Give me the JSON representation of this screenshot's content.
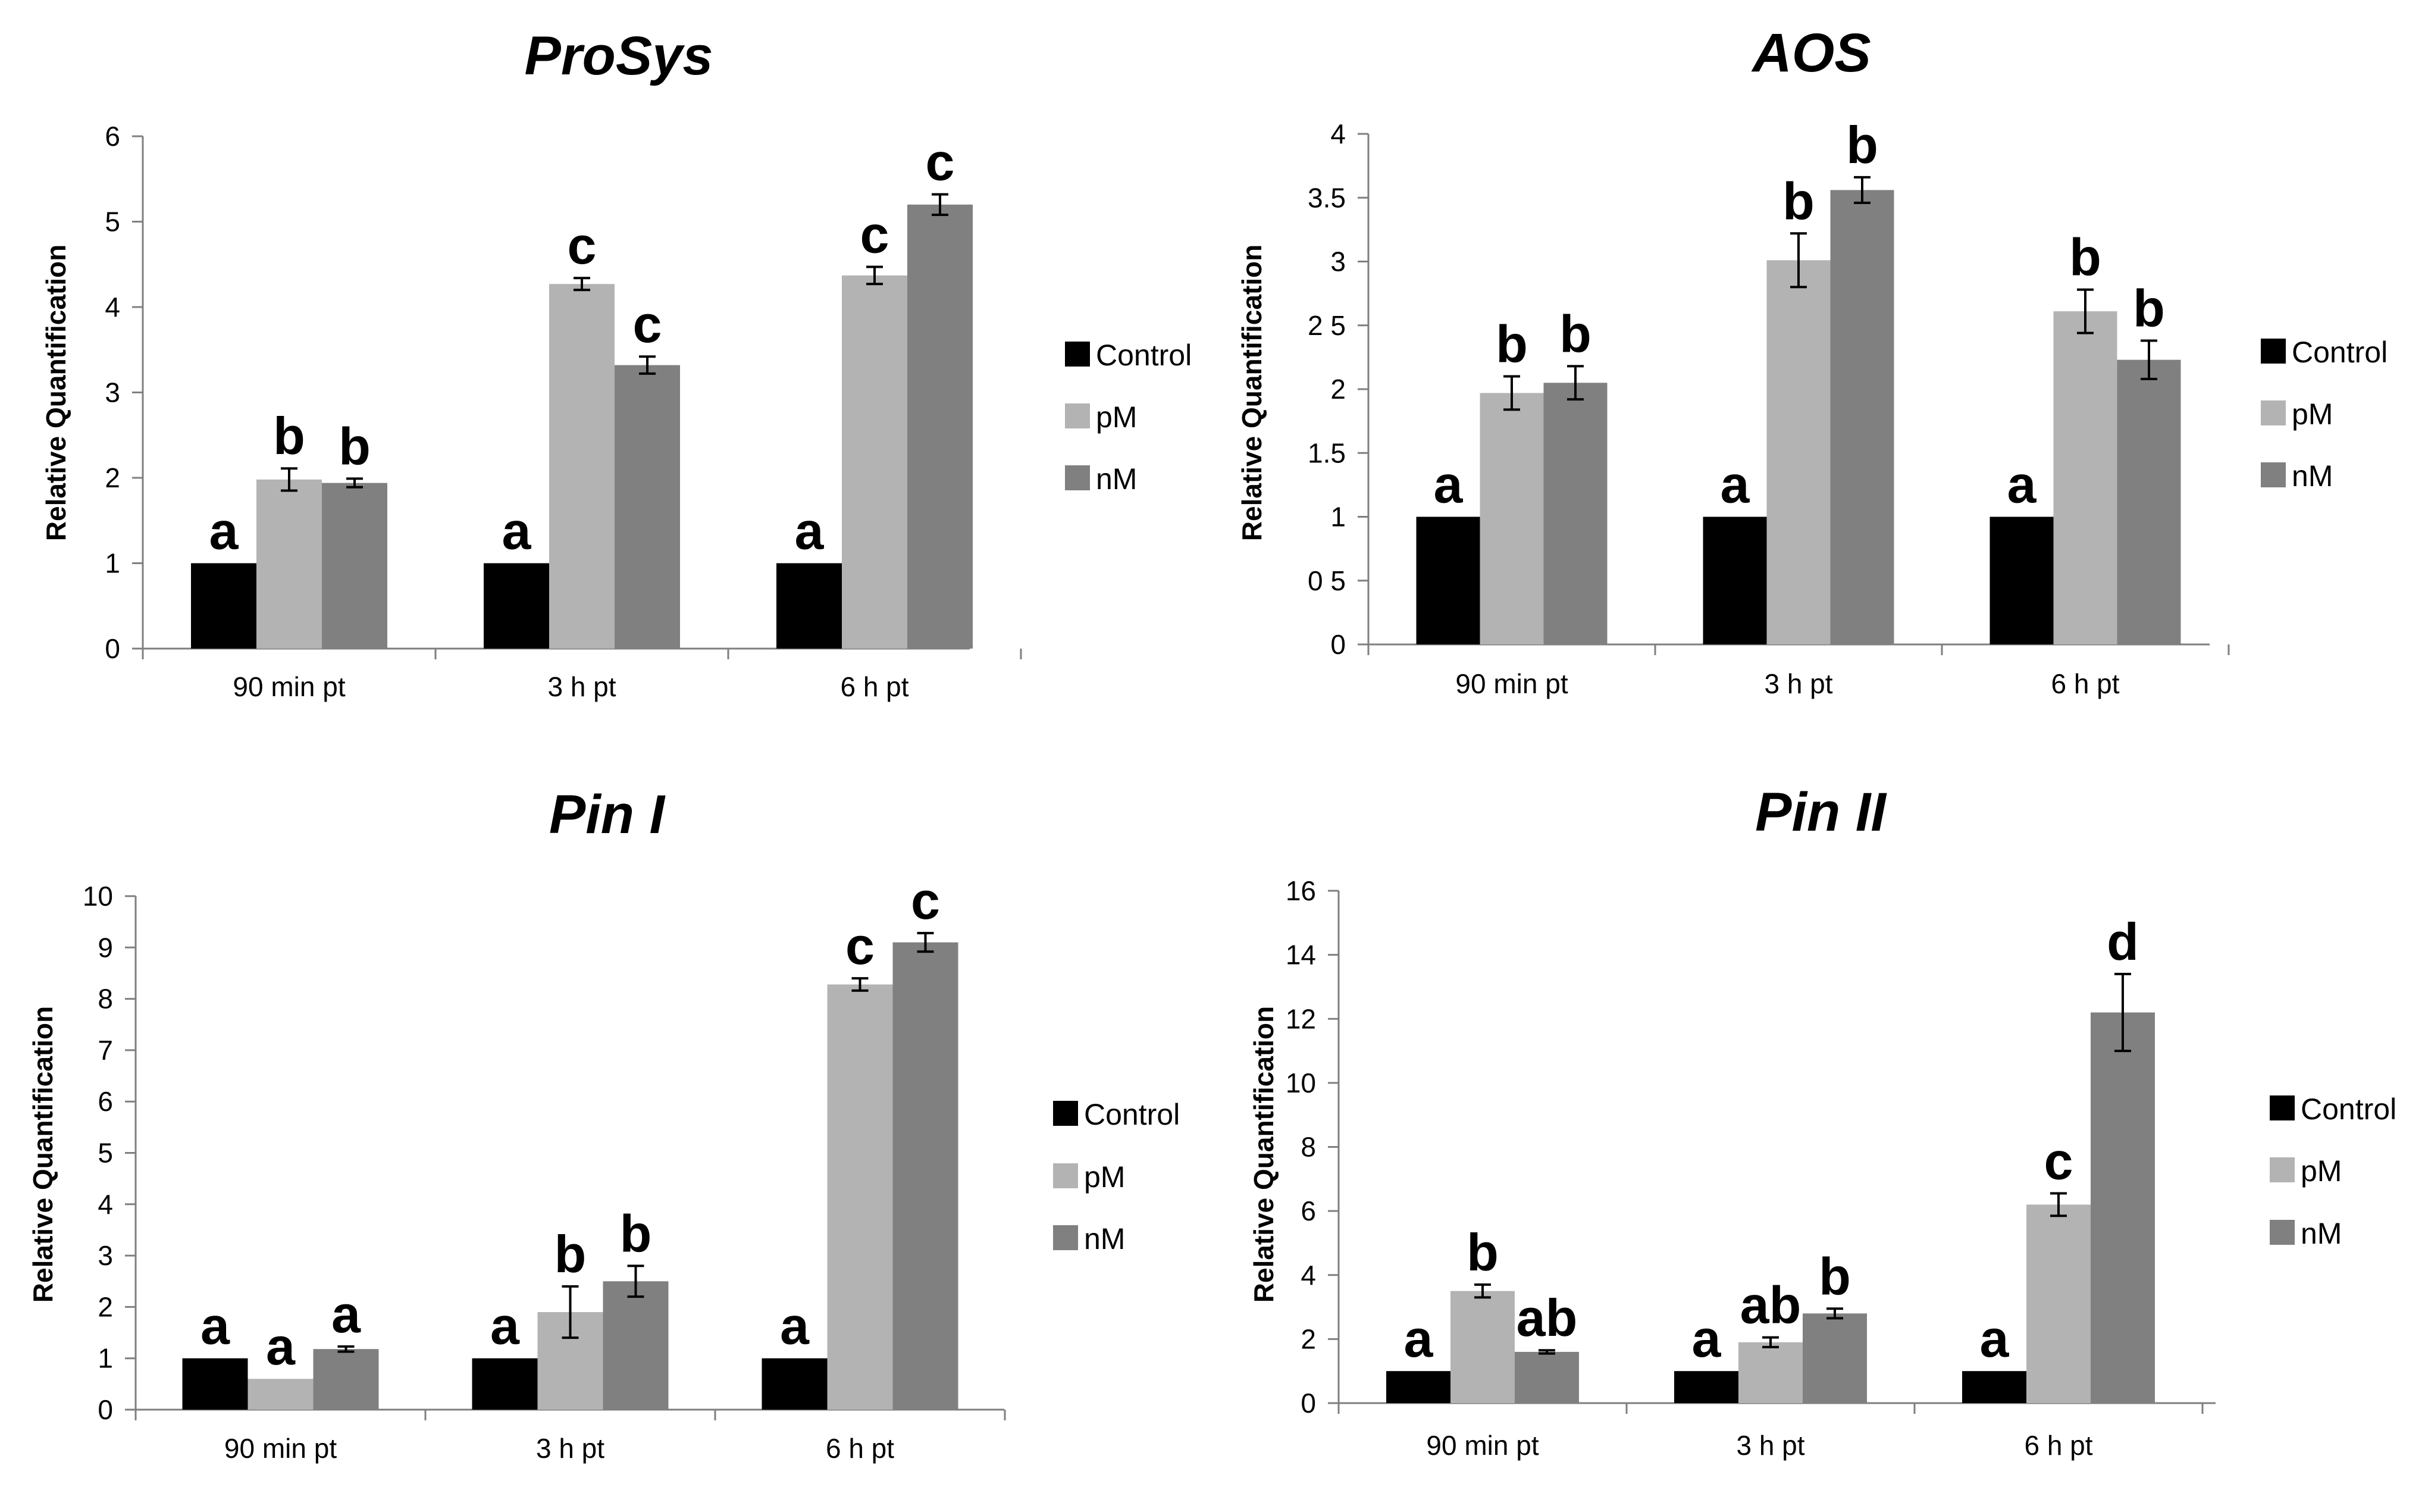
{
  "legend": [
    "Control",
    "pM",
    "nM"
  ],
  "colors": {
    "Control": "#000000",
    "pM": "#b3b3b3",
    "nM": "#808080",
    "axis": "#7f7f7f",
    "errorbar": "#000000"
  },
  "chart_data": [
    {
      "type": "bar",
      "title": "ProSys",
      "ylabel": "Relative Quantification",
      "xlabel": "",
      "ylim": [
        0,
        6
      ],
      "yticks": [
        "0",
        "1",
        "2",
        "3",
        "4",
        "5",
        "6"
      ],
      "categories": [
        "90 min pt",
        "3 h pt",
        "6 h pt"
      ],
      "series": [
        {
          "name": "Control",
          "values": [
            1,
            1,
            1
          ],
          "errors": [
            0,
            0,
            0
          ],
          "letters": [
            "a",
            "a",
            "a"
          ]
        },
        {
          "name": "pM",
          "values": [
            1.98,
            4.27,
            4.37
          ],
          "errors": [
            0.13,
            0.07,
            0.1
          ],
          "letters": [
            "b",
            "c",
            "c"
          ]
        },
        {
          "name": "nM",
          "values": [
            1.94,
            3.32,
            5.2
          ],
          "errors": [
            0.05,
            0.1,
            0.12
          ],
          "letters": [
            "b",
            "c",
            "c"
          ]
        }
      ]
    },
    {
      "type": "bar",
      "title": "AOS",
      "ylabel": "Relative Quantification",
      "xlabel": "",
      "ylim": [
        0,
        4
      ],
      "yticks": [
        "0",
        "0 5",
        "1",
        "1.5",
        "2",
        "2 5",
        "3",
        "3.5",
        "4"
      ],
      "categories": [
        "90 min pt",
        "3 h pt",
        "6 h pt"
      ],
      "series": [
        {
          "name": "Control",
          "values": [
            1,
            1,
            1
          ],
          "errors": [
            0,
            0,
            0
          ],
          "letters": [
            "a",
            "a",
            "a"
          ]
        },
        {
          "name": "pM",
          "values": [
            1.97,
            3.01,
            2.61
          ],
          "errors": [
            0.13,
            0.21,
            0.17
          ],
          "letters": [
            "b",
            "b",
            "b"
          ]
        },
        {
          "name": "nM",
          "values": [
            2.05,
            3.56,
            2.23
          ],
          "errors": [
            0.13,
            0.1,
            0.15
          ],
          "letters": [
            "b",
            "b",
            "b"
          ]
        }
      ]
    },
    {
      "type": "bar",
      "title": "Pin I",
      "ylabel": "Relative Quantification",
      "xlabel": "",
      "ylim": [
        0,
        10
      ],
      "yticks": [
        "0",
        "1",
        "2",
        "3",
        "4",
        "5",
        "6",
        "7",
        "8",
        "9",
        "10"
      ],
      "categories": [
        "90 min pt",
        "3 h pt",
        "6 h pt"
      ],
      "series": [
        {
          "name": "Control",
          "values": [
            1,
            1,
            1
          ],
          "errors": [
            0,
            0,
            0
          ],
          "letters": [
            "a",
            "a",
            "a"
          ]
        },
        {
          "name": "pM",
          "values": [
            0.6,
            1.9,
            8.28
          ],
          "errors": [
            0,
            0.5,
            0.12
          ],
          "letters": [
            "a",
            "b",
            "c"
          ]
        },
        {
          "name": "nM",
          "values": [
            1.18,
            2.5,
            9.1
          ],
          "errors": [
            0.05,
            0.3,
            0.18
          ],
          "letters": [
            "a",
            "b",
            "c"
          ]
        }
      ]
    },
    {
      "type": "bar",
      "title": "Pin II",
      "ylabel": "Relative Quantification",
      "xlabel": "",
      "ylim": [
        0,
        16
      ],
      "yticks": [
        "0",
        "2",
        "4",
        "6",
        "8",
        "10",
        "12",
        "14",
        "16"
      ],
      "categories": [
        "90 min pt",
        "3 h pt",
        "6 h pt"
      ],
      "series": [
        {
          "name": "Control",
          "values": [
            1,
            1,
            1
          ],
          "errors": [
            0,
            0,
            0
          ],
          "letters": [
            "a",
            "a",
            "a"
          ]
        },
        {
          "name": "pM",
          "values": [
            3.5,
            1.9,
            6.2
          ],
          "errors": [
            0.2,
            0.15,
            0.35
          ],
          "letters": [
            "b",
            "ab",
            "c"
          ]
        },
        {
          "name": "nM",
          "values": [
            1.6,
            2.8,
            12.2
          ],
          "errors": [
            0.05,
            0.15,
            1.2
          ],
          "letters": [
            "ab",
            "b",
            "d"
          ]
        }
      ]
    }
  ]
}
